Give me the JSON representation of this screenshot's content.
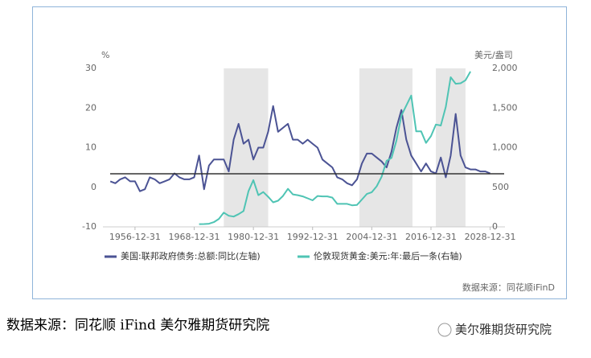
{
  "chart_data": {
    "type": "line",
    "y_label": "%",
    "y2_label": "美元/盎司",
    "xlim": [
      "1950-06-30",
      "2031-12-31"
    ],
    "xticks": [
      "1956-12-31",
      "1968-12-31",
      "1980-12-31",
      "1992-12-31",
      "2004-12-31",
      "2016-12-31",
      "2028-12-31"
    ],
    "ylim": [
      -10,
      30
    ],
    "yticks": [
      -10,
      0,
      10,
      20,
      30
    ],
    "y2lim": [
      0,
      2000
    ],
    "y2ticks": [
      0,
      500,
      {
        "value": 1000,
        "label": "1,000"
      },
      {
        "value": 1500,
        "label": "1,500"
      },
      {
        "value": 2000,
        "label": "2,000"
      }
    ],
    "shaded_periods": [
      [
        "1975-01-01",
        "1984-01-01"
      ],
      [
        "2002-06-30",
        "2013-03-31"
      ],
      [
        "2017-12-31",
        "2023-12-31"
      ]
    ],
    "reference_line": 3.4,
    "series": [
      {
        "name": "美国:联邦政府债务:总额:同比(左轴)",
        "color": "#4b5394",
        "x": [
          "1951-12-31",
          "1952-12-31",
          "1953-12-31",
          "1954-12-31",
          "1955-12-31",
          "1956-12-31",
          "1957-12-31",
          "1958-12-31",
          "1959-12-31",
          "1960-12-31",
          "1961-12-31",
          "1962-12-31",
          "1963-12-31",
          "1964-12-31",
          "1965-12-31",
          "1966-12-31",
          "1967-12-31",
          "1968-12-31",
          "1969-12-31",
          "1970-12-31",
          "1971-12-31",
          "1972-12-31",
          "1973-12-31",
          "1974-12-31",
          "1975-12-31",
          "1976-12-31",
          "1977-12-31",
          "1978-12-31",
          "1979-12-31",
          "1980-12-31",
          "1981-12-31",
          "1982-12-31",
          "1983-12-31",
          "1984-12-31",
          "1985-12-31",
          "1986-12-31",
          "1987-12-31",
          "1988-12-31",
          "1989-12-31",
          "1990-12-31",
          "1991-12-31",
          "1992-12-31",
          "1993-12-31",
          "1994-12-31",
          "1995-12-31",
          "1996-12-31",
          "1997-12-31",
          "1998-12-31",
          "1999-12-31",
          "2000-12-31",
          "2001-12-31",
          "2002-12-31",
          "2003-12-31",
          "2004-12-31",
          "2005-12-31",
          "2006-12-31",
          "2007-12-31",
          "2008-12-31",
          "2009-12-31",
          "2010-12-31",
          "2011-12-31",
          "2012-12-31",
          "2013-12-31",
          "2014-12-31",
          "2015-12-31",
          "2016-12-31",
          "2017-12-31",
          "2018-12-31",
          "2019-12-31",
          "2020-12-31",
          "2021-12-31",
          "2022-12-31",
          "2023-12-31",
          "2024-12-31",
          "2025-12-31",
          "2026-12-31",
          "2027-12-31",
          "2028-12-31"
        ],
        "values": [
          1.5,
          1.0,
          2.0,
          2.5,
          1.5,
          1.5,
          -1.0,
          -0.5,
          2.5,
          2.0,
          1.0,
          1.5,
          2.0,
          3.5,
          2.5,
          2.0,
          2.0,
          2.5,
          8.0,
          -0.5,
          5.5,
          7.0,
          7.0,
          7.0,
          4.0,
          12.0,
          16.0,
          11.0,
          12.0,
          7.0,
          10.0,
          10.0,
          14.0,
          20.5,
          14.0,
          15.0,
          16.0,
          12.0,
          12.0,
          11.0,
          12.0,
          11.0,
          10.0,
          7.0,
          6.0,
          5.0,
          2.5,
          2.0,
          1.0,
          0.5,
          2.0,
          6.0,
          8.5,
          8.5,
          7.5,
          6.5,
          5.0,
          9.0,
          15.0,
          19.5,
          12.0,
          8.0,
          6.0,
          4.0,
          6.0,
          4.0,
          3.5,
          7.5,
          2.5,
          8.0,
          18.5,
          8.0,
          5.0,
          4.5,
          4.5,
          4.0,
          4.0,
          3.5
        ]
      },
      {
        "name": "伦敦现货黄金:美元:年:最后一条(右轴)",
        "color": "#4fc4b4",
        "axis": "y2",
        "x": [
          "1969-12-31",
          "1970-12-31",
          "1971-12-31",
          "1972-12-31",
          "1973-12-31",
          "1974-12-31",
          "1975-12-31",
          "1976-12-31",
          "1977-12-31",
          "1978-12-31",
          "1979-12-31",
          "1980-12-31",
          "1981-12-31",
          "1982-12-31",
          "1983-12-31",
          "1984-12-31",
          "1985-12-31",
          "1986-12-31",
          "1987-12-31",
          "1988-12-31",
          "1989-12-31",
          "1990-12-31",
          "1991-12-31",
          "1992-12-31",
          "1993-12-31",
          "1994-12-31",
          "1995-12-31",
          "1996-12-31",
          "1997-12-31",
          "1998-12-31",
          "1999-12-31",
          "2000-12-31",
          "2001-12-31",
          "2002-12-31",
          "2003-12-31",
          "2004-12-31",
          "2005-12-31",
          "2006-12-31",
          "2007-12-31",
          "2008-12-31",
          "2009-12-31",
          "2010-12-31",
          "2011-12-31",
          "2012-12-31",
          "2013-12-31",
          "2014-12-31",
          "2015-12-31",
          "2016-12-31",
          "2017-12-31",
          "2018-12-31",
          "2019-12-31",
          "2020-12-31",
          "2021-12-31",
          "2022-12-31",
          "2023-12-31",
          "2024-12-31"
        ],
        "values": [
          35,
          36,
          40,
          60,
          100,
          180,
          140,
          130,
          160,
          200,
          450,
          590,
          400,
          440,
          380,
          310,
          330,
          390,
          480,
          410,
          400,
          385,
          360,
          335,
          390,
          385,
          385,
          370,
          290,
          290,
          290,
          272,
          277,
          345,
          415,
          438,
          513,
          632,
          834,
          870,
          1088,
          1405,
          1531,
          1657,
          1205,
          1206,
          1060,
          1146,
          1291,
          1279,
          1514,
          1888,
          1806,
          1812,
          1850,
          1960
        ]
      }
    ],
    "source": "数据来源：同花顺iFinD"
  },
  "footer": {
    "source": "数据来源：同花顺 iFind   美尔雅期货研究院",
    "watermark": "美尔雅期货研究院"
  }
}
